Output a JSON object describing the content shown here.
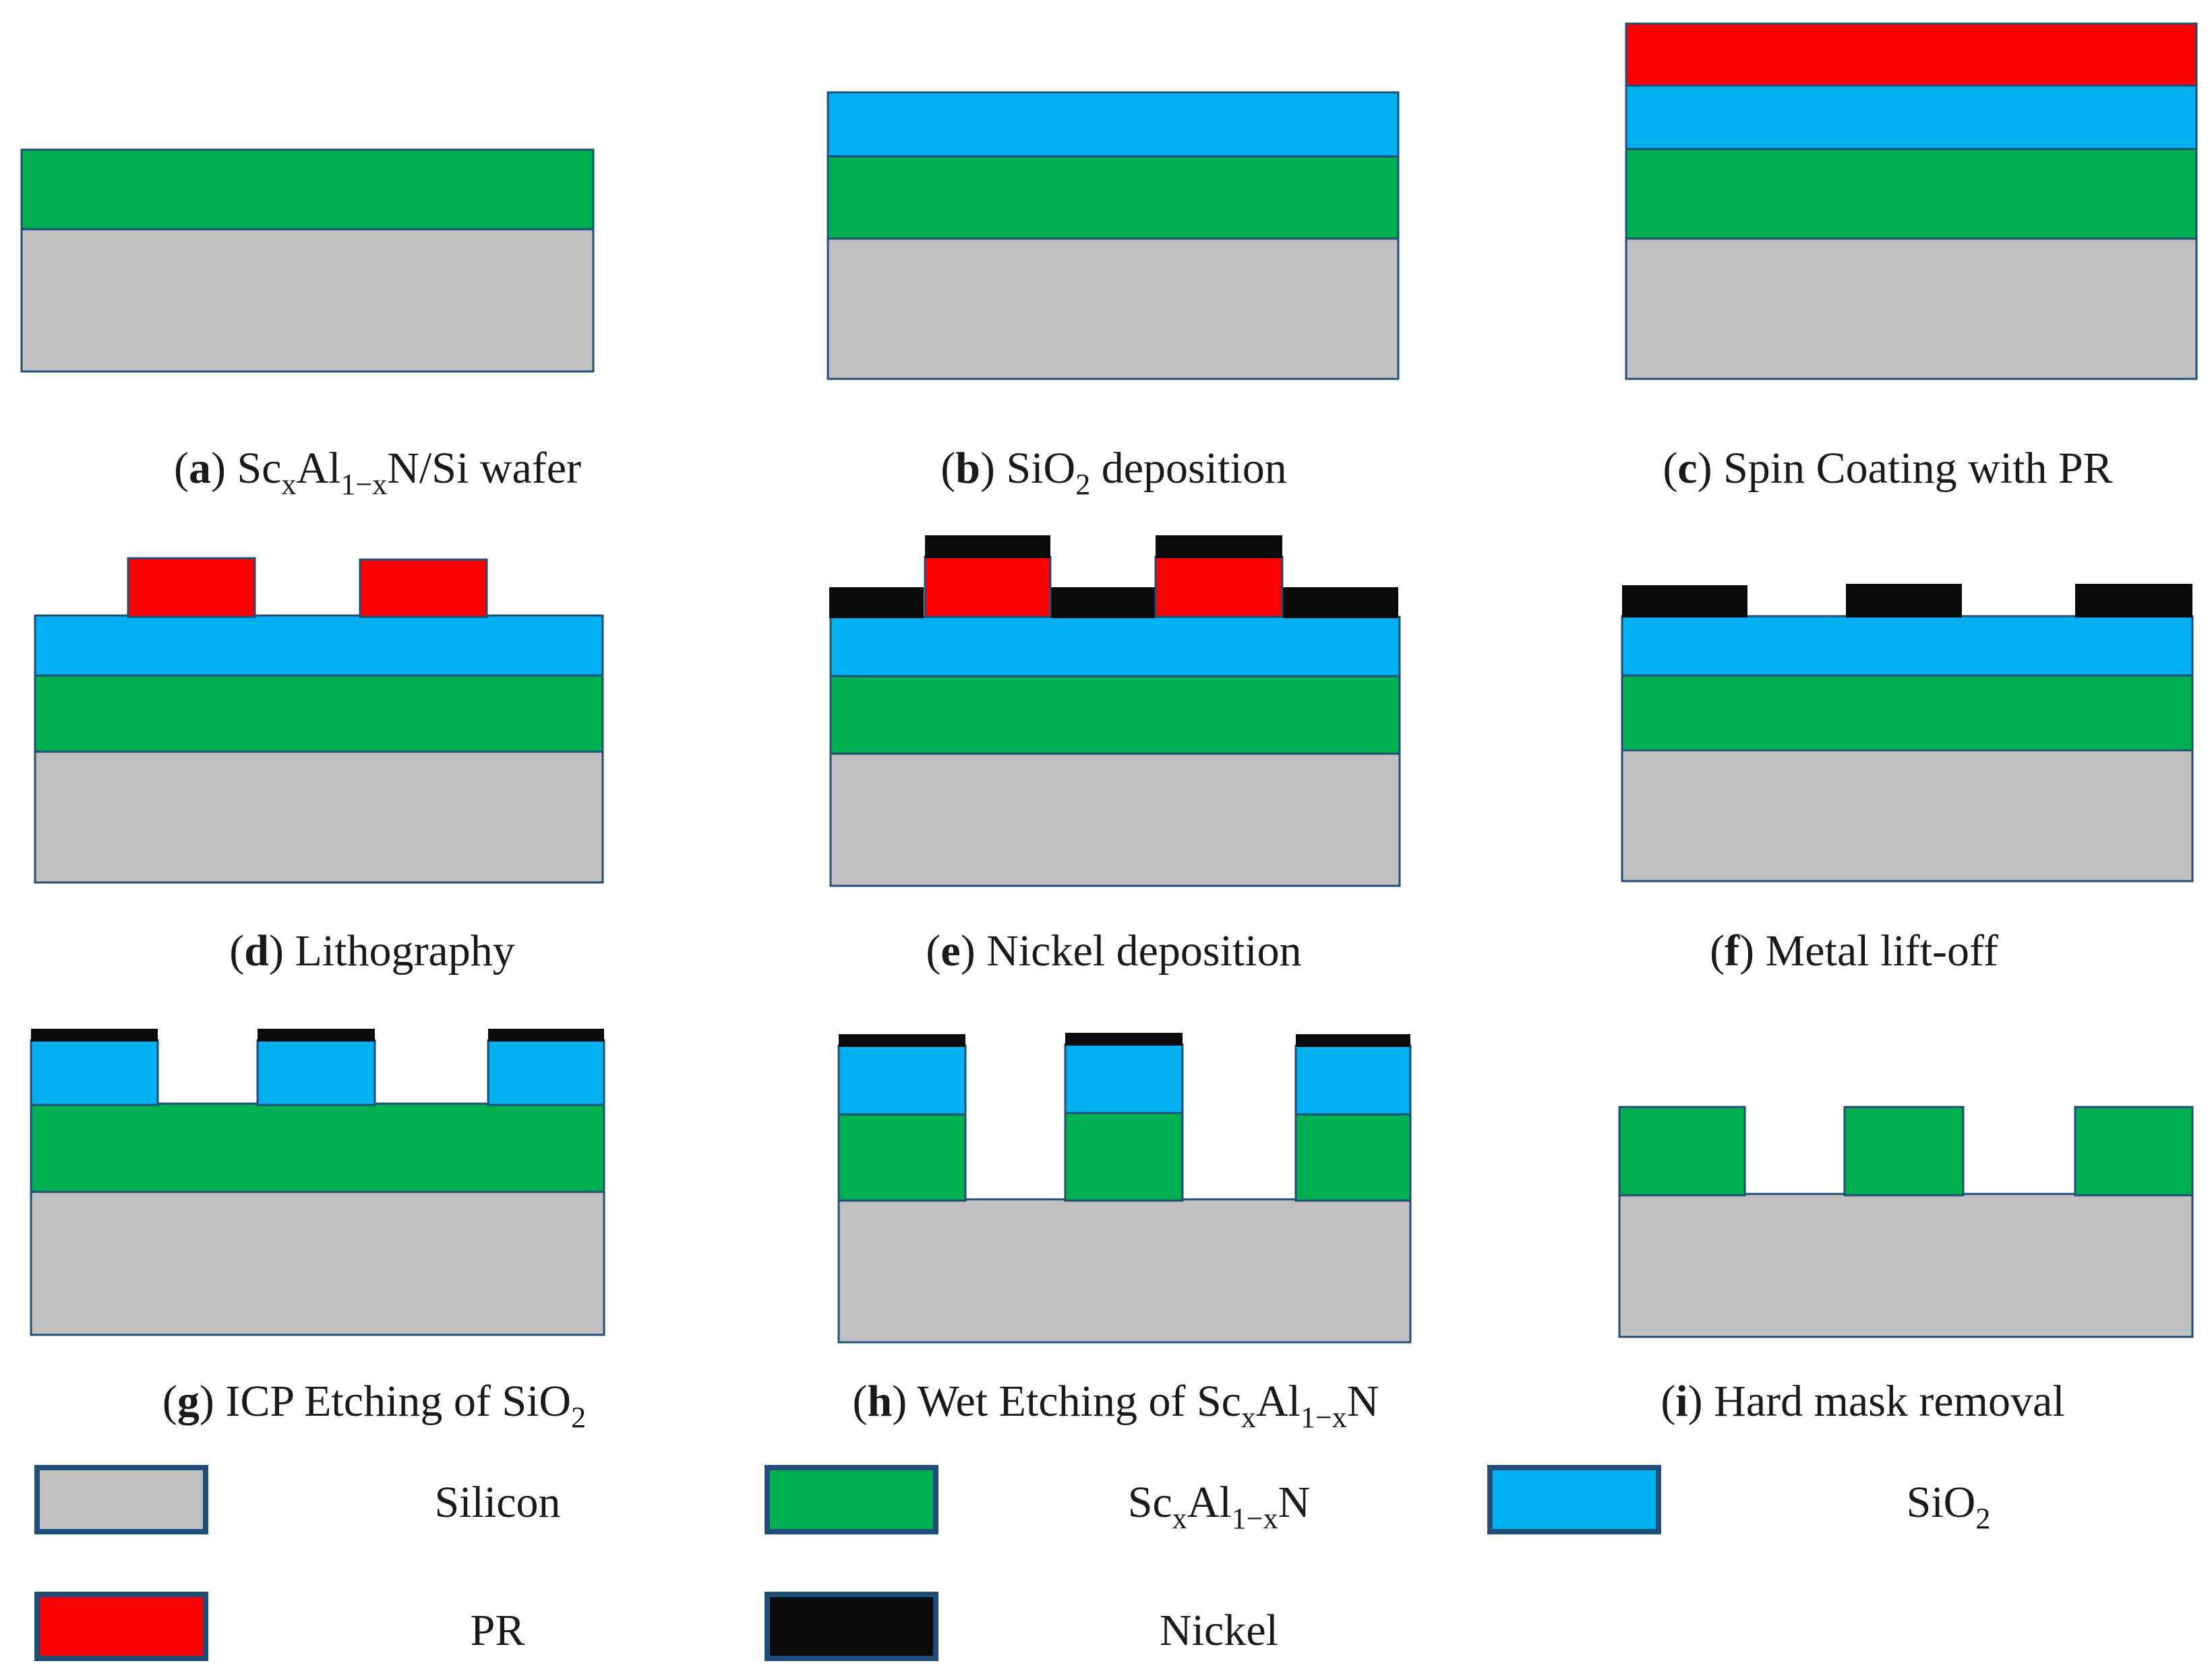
{
  "colors": {
    "silicon": "#c0c0c0",
    "scaln": "#00b050",
    "sio2": "#00b0f0",
    "pr": "#ff0000",
    "nickel": "#0a0a0a",
    "outline": "#1f4e79"
  },
  "steps": [
    {
      "letter": "a",
      "caption": [
        {
          "t": "Sc"
        },
        {
          "t": "x",
          "sub": true
        },
        {
          "t": "Al"
        },
        {
          "t": "1−x",
          "sub": true
        },
        {
          "t": "N/Si wafer"
        }
      ]
    },
    {
      "letter": "b",
      "caption": [
        {
          "t": "SiO"
        },
        {
          "t": "2",
          "sub": true
        },
        {
          "t": "  deposition"
        }
      ]
    },
    {
      "letter": "c",
      "caption": [
        {
          "t": "Spin Coating with PR"
        }
      ]
    },
    {
      "letter": "d",
      "caption": [
        {
          "t": "Lithography"
        }
      ]
    },
    {
      "letter": "e",
      "caption": [
        {
          "t": "Nickel deposition"
        }
      ]
    },
    {
      "letter": "f",
      "caption": [
        {
          "t": "Metal lift-off"
        }
      ]
    },
    {
      "letter": "g",
      "caption": [
        {
          "t": "ICP Etching of  SiO"
        },
        {
          "t": "2",
          "sub": true
        }
      ]
    },
    {
      "letter": "h",
      "caption": [
        {
          "t": "Wet Etching of  Sc"
        },
        {
          "t": "x",
          "sub": true
        },
        {
          "t": "Al"
        },
        {
          "t": "1−x",
          "sub": true
        },
        {
          "t": "N"
        }
      ]
    },
    {
      "letter": "i",
      "caption": [
        {
          "t": "Hard mask removal"
        }
      ]
    }
  ],
  "legend": [
    {
      "material": "silicon",
      "label": [
        {
          "t": "Silicon"
        }
      ]
    },
    {
      "material": "scaln",
      "label": [
        {
          "t": "Sc"
        },
        {
          "t": "x",
          "sub": true
        },
        {
          "t": "Al"
        },
        {
          "t": "1−x",
          "sub": true
        },
        {
          "t": "N"
        }
      ]
    },
    {
      "material": "sio2",
      "label": [
        {
          "t": "SiO"
        },
        {
          "t": "2",
          "sub": true
        }
      ]
    },
    {
      "material": "pr",
      "label": [
        {
          "t": "PR"
        }
      ]
    },
    {
      "material": "nickel",
      "label": [
        {
          "t": "Nickel"
        }
      ]
    }
  ]
}
